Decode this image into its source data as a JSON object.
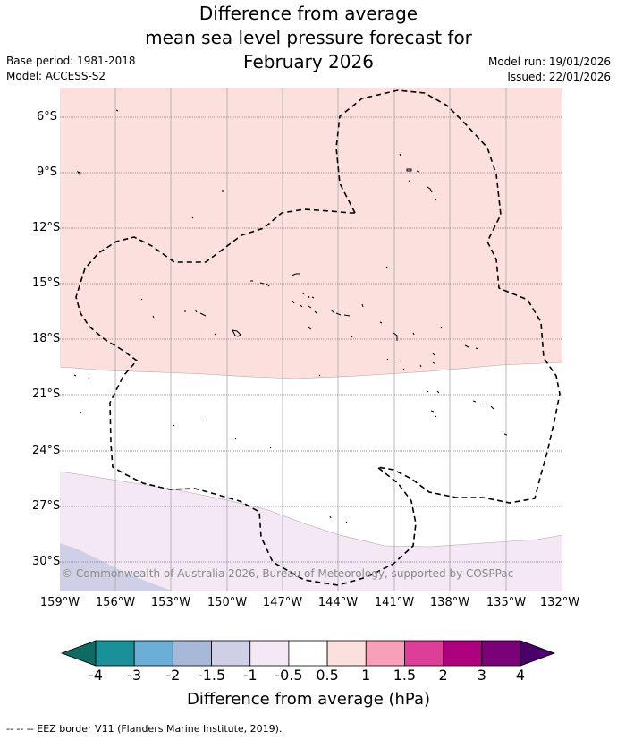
{
  "title": {
    "line1": "Difference from average",
    "line2": "mean sea level pressure forecast for",
    "line3": "February 2026"
  },
  "meta": {
    "base_period": "Base period: 1981-2018",
    "model": "Model: ACCESS-S2",
    "model_run": "Model run: 19/01/2026",
    "issued": "Issued: 22/01/2026"
  },
  "map": {
    "lat_labels": [
      "6°S",
      "9°S",
      "12°S",
      "15°S",
      "18°S",
      "21°S",
      "24°S",
      "27°S",
      "30°S"
    ],
    "lon_labels": [
      "159°W",
      "156°W",
      "153°W",
      "150°W",
      "147°W",
      "144°W",
      "141°W",
      "138°W",
      "135°W",
      "132°W"
    ],
    "copyright": "© Commonwealth of Australia 2026, Bureau of Meteorology, supported by COSPPac"
  },
  "colorbar": {
    "title": "Difference from average (hPa)",
    "ticks": [
      "-4",
      "-3",
      "-2",
      "-1.5",
      "-1",
      "-0.5",
      "0.5",
      "1",
      "1.5",
      "2",
      "3",
      "4"
    ],
    "colors": [
      "#1b9098",
      "#6baed6",
      "#a7b8d8",
      "#cfd0e6",
      "#f3e8f3",
      "#ffffff",
      "#fce0de",
      "#f8a0b9",
      "#dc3e98",
      "#ae017e",
      "#7a0177"
    ],
    "under_color": "#0e6b63",
    "over_color": "#49006a"
  },
  "footer": "--  --  -- EEZ border V11 (Flanders Marine Institute, 2019)."
}
